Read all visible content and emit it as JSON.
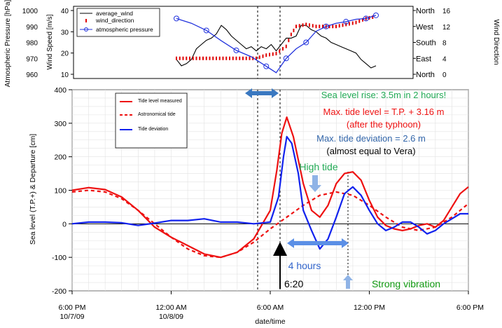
{
  "chart_data": [
    {
      "type": "line",
      "panel": "top",
      "left_axes": [
        {
          "label": "Atmospheric Pressure [hPa]",
          "ylim": [
            960,
            1000
          ],
          "ticks": [
            960,
            970,
            980,
            990,
            1000
          ]
        },
        {
          "label": "Wind Speed [m/s]",
          "ylim": [
            10,
            40
          ],
          "ticks": [
            10,
            20,
            30,
            40
          ]
        }
      ],
      "right_axes": [
        {
          "label": "Wind Direction",
          "ylim": [
            0,
            16
          ],
          "ticks": [
            0,
            4,
            8,
            12,
            16
          ]
        },
        {
          "label": "",
          "categories": [
            "North",
            "West",
            "South",
            "East",
            "North"
          ]
        }
      ],
      "legend": {
        "position": "top-left",
        "entries": [
          "average_wind",
          "wind_direction",
          "atmospheric pressure"
        ]
      },
      "series": [
        {
          "name": "average_wind",
          "color": "#000000",
          "unit": "m/s",
          "points": [
            [
              -12,
              17
            ],
            [
              -11.5,
              14
            ],
            [
              -11,
              15
            ],
            [
              -10.5,
              17
            ],
            [
              -10,
              22
            ],
            [
              -9.5,
              24
            ],
            [
              -9,
              26
            ],
            [
              -8.5,
              27
            ],
            [
              -8,
              29
            ],
            [
              -7.5,
              33
            ],
            [
              -7,
              31
            ],
            [
              -6.5,
              28
            ],
            [
              -6,
              26
            ],
            [
              -5.5,
              24
            ],
            [
              -5,
              22
            ],
            [
              -4.5,
              23
            ],
            [
              -4,
              21
            ],
            [
              -3.5,
              23
            ],
            [
              -3,
              22
            ],
            [
              -2.5,
              24
            ],
            [
              -2,
              21
            ],
            [
              -1.5,
              24
            ],
            [
              -1,
              27
            ],
            [
              -0.5,
              27
            ],
            [
              0,
              28
            ],
            [
              0.5,
              33
            ],
            [
              1,
              33
            ],
            [
              1.5,
              31
            ],
            [
              2,
              30
            ],
            [
              2.5,
              28
            ],
            [
              3,
              27
            ],
            [
              3.5,
              25
            ],
            [
              4,
              24
            ],
            [
              4.5,
              23
            ],
            [
              5,
              22
            ],
            [
              5.5,
              21
            ],
            [
              6,
              20
            ],
            [
              6.5,
              17
            ],
            [
              7,
              15
            ],
            [
              7.5,
              13
            ],
            [
              8,
              14
            ]
          ]
        },
        {
          "name": "wind_direction",
          "color": "#e00000",
          "unit": "compass",
          "points": [
            [
              -12,
              4
            ],
            [
              -10,
              4
            ],
            [
              -8,
              4
            ],
            [
              -6,
              4
            ],
            [
              -4,
              4
            ],
            [
              -3,
              4.8
            ],
            [
              -2,
              5.2
            ],
            [
              -1,
              7
            ],
            [
              -0.5,
              10
            ],
            [
              0,
              12
            ],
            [
              1,
              12.5
            ],
            [
              2,
              12
            ],
            [
              3,
              12
            ],
            [
              4,
              12
            ],
            [
              5,
              12.5
            ],
            [
              6,
              13
            ],
            [
              7,
              14
            ],
            [
              8,
              14.5
            ]
          ]
        },
        {
          "name": "atmospheric pressure",
          "color": "#2233dd",
          "unit": "hPa",
          "points": [
            [
              -12,
              995
            ],
            [
              -10.5,
              992
            ],
            [
              -9,
              987.5
            ],
            [
              -7.5,
              981
            ],
            [
              -6,
              975
            ],
            [
              -4.5,
              971
            ],
            [
              -3,
              965
            ],
            [
              -2,
              961
            ],
            [
              -1,
              970
            ],
            [
              0,
              976
            ],
            [
              1,
              980
            ],
            [
              2,
              987
            ],
            [
              3,
              990
            ],
            [
              4,
              992
            ],
            [
              5,
              993
            ],
            [
              6,
              994.5
            ],
            [
              7,
              995
            ],
            [
              8,
              997
            ]
          ]
        }
      ]
    },
    {
      "type": "line",
      "panel": "bottom",
      "ylabel": "Sea level (T.P.+) & Departure [cm]",
      "xlabel": "date/time",
      "ylim": [
        -200,
        400
      ],
      "yticks": [
        -200,
        -100,
        0,
        100,
        200,
        300,
        400
      ],
      "xticks": [
        {
          "hour": -24,
          "label1": "6:00 PM",
          "label2": "10/7/09"
        },
        {
          "hour": -18,
          "label1": "12:00 AM",
          "label2": "10/8/09"
        },
        {
          "hour": -12,
          "label1": "6:00 AM",
          "label2": ""
        },
        {
          "hour": -6,
          "label1": "12:00 PM",
          "label2": ""
        },
        {
          "hour": 0,
          "label1": "6:00 PM",
          "label2": ""
        }
      ],
      "grid": true,
      "legend": {
        "position": "top-left",
        "entries": [
          "Tide level measured",
          "Astronomical tide",
          "Tide deviation"
        ]
      },
      "series": [
        {
          "name": "Tide level measured",
          "color": "#ee1111",
          "style": "solid",
          "points": [
            [
              -24,
              100
            ],
            [
              -23,
              108
            ],
            [
              -22,
              102
            ],
            [
              -21,
              80
            ],
            [
              -20,
              40
            ],
            [
              -19,
              -10
            ],
            [
              -18,
              -40
            ],
            [
              -17,
              -65
            ],
            [
              -16,
              -90
            ],
            [
              -15,
              -100
            ],
            [
              -14,
              -85
            ],
            [
              -13,
              -45
            ],
            [
              -12,
              40
            ],
            [
              -11.6,
              160
            ],
            [
              -11.3,
              270
            ],
            [
              -11,
              318
            ],
            [
              -10.6,
              260
            ],
            [
              -10,
              120
            ],
            [
              -9.5,
              40
            ],
            [
              -9,
              20
            ],
            [
              -8.5,
              55
            ],
            [
              -8,
              120
            ],
            [
              -7.5,
              150
            ],
            [
              -7,
              155
            ],
            [
              -6.5,
              130
            ],
            [
              -6,
              70
            ],
            [
              -5.5,
              20
            ],
            [
              -5,
              -5
            ],
            [
              -4.5,
              -15
            ],
            [
              -4,
              -20
            ],
            [
              -3.5,
              -15
            ],
            [
              -3,
              -5
            ],
            [
              -2.5,
              0
            ],
            [
              -2,
              -10
            ],
            [
              -1.5,
              10
            ],
            [
              -1,
              50
            ],
            [
              -0.5,
              90
            ],
            [
              0,
              110
            ]
          ]
        },
        {
          "name": "Astronomical tide",
          "color": "#ee1111",
          "style": "dashed",
          "points": [
            [
              -24,
              95
            ],
            [
              -23,
              100
            ],
            [
              -22,
              95
            ],
            [
              -21,
              75
            ],
            [
              -20,
              40
            ],
            [
              -19,
              0
            ],
            [
              -18,
              -40
            ],
            [
              -17,
              -75
            ],
            [
              -16,
              -95
            ],
            [
              -15,
              -100
            ],
            [
              -14,
              -85
            ],
            [
              -13,
              -55
            ],
            [
              -12,
              -15
            ],
            [
              -11,
              20
            ],
            [
              -10,
              55
            ],
            [
              -9,
              85
            ],
            [
              -8,
              95
            ],
            [
              -7,
              85
            ],
            [
              -6,
              55
            ],
            [
              -5,
              20
            ],
            [
              -4,
              -10
            ],
            [
              -3,
              -20
            ],
            [
              -2,
              -10
            ],
            [
              -1,
              20
            ],
            [
              0,
              60
            ]
          ]
        },
        {
          "name": "Tide deviation",
          "color": "#1122ee",
          "style": "solid",
          "points": [
            [
              -24,
              0
            ],
            [
              -23,
              5
            ],
            [
              -22,
              5
            ],
            [
              -21,
              3
            ],
            [
              -20,
              -5
            ],
            [
              -19,
              2
            ],
            [
              -18,
              10
            ],
            [
              -17,
              10
            ],
            [
              -16,
              15
            ],
            [
              -15,
              5
            ],
            [
              -14,
              5
            ],
            [
              -13,
              0
            ],
            [
              -12,
              5
            ],
            [
              -11.5,
              80
            ],
            [
              -11.2,
              200
            ],
            [
              -11,
              260
            ],
            [
              -10.7,
              240
            ],
            [
              -10.3,
              150
            ],
            [
              -10,
              40
            ],
            [
              -9.5,
              -20
            ],
            [
              -9,
              -75
            ],
            [
              -8.5,
              -45
            ],
            [
              -8,
              20
            ],
            [
              -7.5,
              90
            ],
            [
              -7,
              110
            ],
            [
              -6.5,
              85
            ],
            [
              -6,
              40
            ],
            [
              -5.5,
              0
            ],
            [
              -5,
              -20
            ],
            [
              -4.5,
              -10
            ],
            [
              -4,
              5
            ],
            [
              -3.5,
              5
            ],
            [
              -3,
              -10
            ],
            [
              -2.5,
              -30
            ],
            [
              -2,
              -20
            ],
            [
              -1.5,
              0
            ],
            [
              -1,
              15
            ],
            [
              -0.5,
              30
            ],
            [
              0,
              30
            ]
          ]
        }
      ],
      "annotations": {
        "rise": "Sea level rise: 3.5m in 2 hours!",
        "max_tide_1": "Max. tide level = T.P. + 3.16 m",
        "max_tide_2": "(after the typhoon)",
        "max_dev_1": "Max. tide deviation = 2.6 m",
        "max_dev_2": "(almost equal to Vera)",
        "high_tide": "High tide",
        "four_hours": "4 hours",
        "time_620": "6:20",
        "strong_vibration": "Strong vibration"
      }
    }
  ],
  "colors": {
    "green": "#22aa55",
    "red": "#ee1111",
    "blue_text": "#3366aa",
    "arrow_blue": "#4a86e8",
    "black": "#000000"
  }
}
